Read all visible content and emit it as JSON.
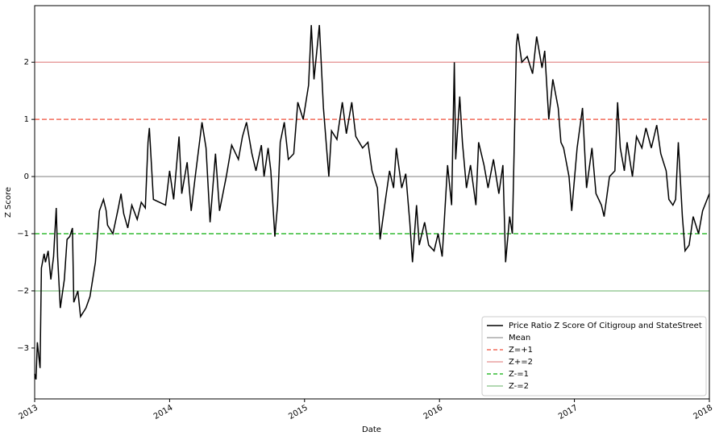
{
  "chart_data": {
    "type": "line",
    "xlabel": "Date",
    "ylabel": "Z Score",
    "x": [
      2013.0,
      2013.01,
      2013.02,
      2013.04,
      2013.05,
      2013.07,
      2013.08,
      2013.1,
      2013.12,
      2013.14,
      2013.16,
      2013.17,
      2013.19,
      2013.22,
      2013.24,
      2013.26,
      2013.28,
      2013.29,
      2013.32,
      2013.34,
      2013.38,
      2013.41,
      2013.45,
      2013.48,
      2013.51,
      2013.53,
      2013.54,
      2013.58,
      2013.62,
      2013.64,
      2013.66,
      2013.69,
      2013.72,
      2013.76,
      2013.79,
      2013.82,
      2013.84,
      2013.85,
      2013.88,
      2013.97,
      2014.0,
      2014.03,
      2014.07,
      2014.09,
      2014.13,
      2014.16,
      2014.19,
      2014.24,
      2014.27,
      2014.3,
      2014.34,
      2014.37,
      2014.42,
      2014.46,
      2014.51,
      2014.54,
      2014.57,
      2014.61,
      2014.64,
      2014.68,
      2014.7,
      2014.73,
      2014.75,
      2014.78,
      2014.8,
      2014.82,
      2014.85,
      2014.88,
      2014.92,
      2014.95,
      2014.99,
      2015.03,
      2015.05,
      2015.07,
      2015.11,
      2015.14,
      2015.18,
      2015.2,
      2015.24,
      2015.28,
      2015.31,
      2015.35,
      2015.38,
      2015.43,
      2015.47,
      2015.5,
      2015.54,
      2015.56,
      2015.6,
      2015.63,
      2015.66,
      2015.68,
      2015.72,
      2015.75,
      2015.78,
      2015.8,
      2015.83,
      2015.85,
      2015.89,
      2015.92,
      2015.96,
      2015.99,
      2016.02,
      2016.04,
      2016.06,
      2016.09,
      2016.11,
      2016.12,
      2016.15,
      2016.17,
      2016.2,
      2016.23,
      2016.27,
      2016.29,
      2016.33,
      2016.36,
      2016.4,
      2016.44,
      2016.47,
      2016.49,
      2016.52,
      2016.54,
      2016.57,
      2016.58,
      2016.61,
      2016.65,
      2016.69,
      2016.72,
      2016.76,
      2016.78,
      2016.81,
      2016.84,
      2016.88,
      2016.9,
      2016.92,
      2016.96,
      2016.98,
      2017.02,
      2017.06,
      2017.09,
      2017.13,
      2017.16,
      2017.2,
      2017.22,
      2017.26,
      2017.3,
      2017.32,
      2017.34,
      2017.37,
      2017.39,
      2017.43,
      2017.46,
      2017.5,
      2017.53,
      2017.57,
      2017.61,
      2017.64,
      2017.68,
      2017.7,
      2017.73,
      2017.75,
      2017.77,
      2017.8,
      2017.82,
      2017.85,
      2017.88,
      2017.92,
      2017.95,
      2018.0
    ],
    "series": [
      {
        "name": "Price Ratio Z Score Of Citigroup and StateStreet",
        "color": "#000000",
        "values": [
          -3.45,
          -3.55,
          -2.9,
          -3.35,
          -1.6,
          -1.35,
          -1.5,
          -1.3,
          -1.8,
          -1.4,
          -0.55,
          -1.4,
          -2.3,
          -1.8,
          -1.1,
          -1.05,
          -0.9,
          -2.2,
          -2.0,
          -2.45,
          -2.3,
          -2.1,
          -1.5,
          -0.6,
          -0.4,
          -0.6,
          -0.85,
          -1.0,
          -0.55,
          -0.3,
          -0.65,
          -0.9,
          -0.5,
          -0.75,
          -0.45,
          -0.55,
          0.6,
          0.85,
          -0.4,
          -0.5,
          0.1,
          -0.4,
          0.7,
          -0.3,
          0.25,
          -0.6,
          0.0,
          0.95,
          0.5,
          -0.8,
          0.4,
          -0.6,
          0.0,
          0.55,
          0.3,
          0.7,
          0.95,
          0.4,
          0.1,
          0.55,
          0.0,
          0.5,
          0.1,
          -1.05,
          -0.5,
          0.6,
          0.95,
          0.3,
          0.4,
          1.3,
          1.0,
          1.6,
          2.65,
          1.7,
          2.65,
          1.2,
          0.0,
          0.8,
          0.65,
          1.3,
          0.75,
          1.3,
          0.7,
          0.5,
          0.6,
          0.1,
          -0.2,
          -1.1,
          -0.4,
          0.1,
          -0.2,
          0.5,
          -0.2,
          0.05,
          -0.8,
          -1.5,
          -0.5,
          -1.2,
          -0.8,
          -1.2,
          -1.3,
          -1.0,
          -1.4,
          -0.6,
          0.2,
          -0.5,
          2.0,
          0.3,
          1.4,
          0.6,
          -0.2,
          0.2,
          -0.5,
          0.6,
          0.2,
          -0.2,
          0.3,
          -0.3,
          0.2,
          -1.5,
          -0.7,
          -1.0,
          2.3,
          2.5,
          2.0,
          2.1,
          1.8,
          2.45,
          1.9,
          2.2,
          1.0,
          1.7,
          1.2,
          0.6,
          0.5,
          0.0,
          -0.6,
          0.5,
          1.2,
          -0.2,
          0.5,
          -0.3,
          -0.5,
          -0.7,
          0.0,
          0.1,
          1.3,
          0.5,
          0.1,
          0.6,
          0.0,
          0.7,
          0.5,
          0.85,
          0.5,
          0.9,
          0.4,
          0.1,
          -0.4,
          -0.5,
          -0.4,
          0.6,
          -0.7,
          -1.3,
          -1.2,
          -0.7,
          -1.0,
          -0.6,
          -0.3
        ]
      }
    ],
    "reference_lines": [
      {
        "name": "Mean",
        "value": 0,
        "color": "#aaaaaa",
        "dash": false
      },
      {
        "name": "Z=+1",
        "value": 1,
        "color": "#f26b5b",
        "dash": true
      },
      {
        "name": "Z+=2",
        "value": 2,
        "color": "#e8a0a0",
        "dash": false
      },
      {
        "name": "Z-=1",
        "value": -1,
        "color": "#33bb33",
        "dash": true
      },
      {
        "name": "Z-=2",
        "value": -2,
        "color": "#99cc99",
        "dash": false
      }
    ],
    "xlim": [
      2013,
      2018
    ],
    "xticks": [
      2013,
      2014,
      2015,
      2016,
      2017,
      2018
    ],
    "ylim": [
      -3.89,
      2.99
    ],
    "yticks": [
      {
        "value": -3,
        "label": "−3"
      },
      {
        "value": -2,
        "label": "−2"
      },
      {
        "value": -1,
        "label": "−1"
      },
      0,
      1,
      2
    ],
    "legend": "lower right"
  }
}
